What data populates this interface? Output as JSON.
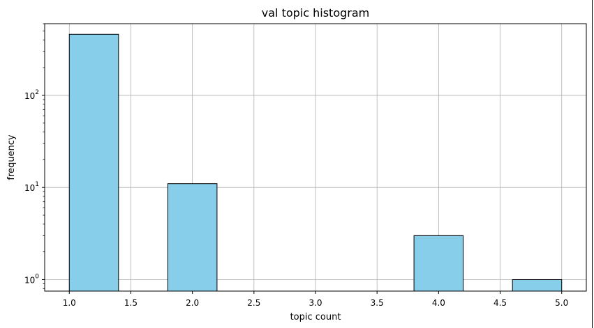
{
  "chart_data": {
    "type": "bar",
    "title": "val topic histogram",
    "xlabel": "topic count",
    "ylabel": "frequency",
    "yscale": "log",
    "xlim": [
      0.8,
      5.2
    ],
    "ylim": [
      0.75,
      600
    ],
    "grid": true,
    "bar_color": "#87CEEB",
    "edge_color": "#000000",
    "x_ticks": [
      "1.0",
      "1.5",
      "2.0",
      "2.5",
      "3.0",
      "3.5",
      "4.0",
      "4.5",
      "5.0"
    ],
    "y_ticks": [
      {
        "base": "10",
        "exp": "0",
        "value": 1
      },
      {
        "base": "10",
        "exp": "1",
        "value": 10
      },
      {
        "base": "10",
        "exp": "2",
        "value": 100
      }
    ],
    "bins": [
      {
        "start": 1.0,
        "end": 1.4,
        "value": 460
      },
      {
        "start": 1.4,
        "end": 1.8,
        "value": 0
      },
      {
        "start": 1.8,
        "end": 2.2,
        "value": 11
      },
      {
        "start": 2.2,
        "end": 2.6,
        "value": 0
      },
      {
        "start": 2.6,
        "end": 3.0,
        "value": 0
      },
      {
        "start": 3.0,
        "end": 3.4,
        "value": 0
      },
      {
        "start": 3.4,
        "end": 3.8,
        "value": 0
      },
      {
        "start": 3.8,
        "end": 4.2,
        "value": 3
      },
      {
        "start": 4.2,
        "end": 4.6,
        "value": 0
      },
      {
        "start": 4.6,
        "end": 5.0,
        "value": 1
      }
    ]
  }
}
